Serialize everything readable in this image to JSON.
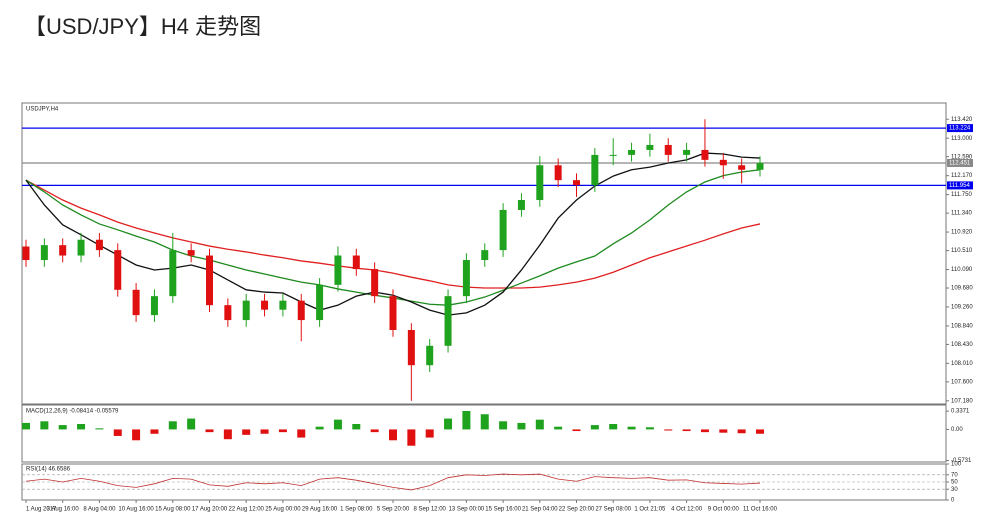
{
  "chart_data": [
    {
      "type": "candlestick",
      "title": "【USD/JPY】H4 走势图",
      "subtitle": "USDJPY,H4",
      "categories": [
        "1 Aug 2017",
        null,
        "3 Aug 16:00",
        null,
        "8 Aug 04:00",
        null,
        "10 Aug 16:00",
        null,
        "15 Aug 08:00",
        null,
        "17 Aug 20:00",
        null,
        "22 Aug 12:00",
        null,
        "25 Aug 00:00",
        null,
        "29 Aug 16:00",
        null,
        "1 Sep 08:00",
        null,
        "5 Sep 20:00",
        null,
        "8 Sep 12:00",
        null,
        "13 Sep 00:00",
        null,
        "15 Sep 16:00",
        null,
        "21 Sep 04:00",
        null,
        "22 Sep 20:00",
        null,
        "27 Sep 08:00",
        null,
        "1 Oct 21:05",
        null,
        "4 Oct 12:00",
        null,
        "9 Oct 00:00",
        null,
        "11 Oct 16:00"
      ],
      "open": [
        110.6,
        110.3,
        110.63,
        110.4,
        110.75,
        110.52,
        109.64,
        109.08,
        109.5,
        110.52,
        110.4,
        109.3,
        108.97,
        109.4,
        109.2,
        109.4,
        108.97,
        109.75,
        110.4,
        110.1,
        109.5,
        108.75,
        107.97,
        108.4,
        109.5,
        110.3,
        110.52,
        111.41,
        111.63,
        112.4,
        112.07,
        111.96,
        112.63,
        112.63,
        112.74,
        112.85,
        112.63,
        112.74,
        112.52,
        112.4,
        112.3
      ],
      "high": [
        110.75,
        110.78,
        110.78,
        110.9,
        110.9,
        110.67,
        109.79,
        109.65,
        110.9,
        110.67,
        110.55,
        109.45,
        109.55,
        109.55,
        109.55,
        109.55,
        109.9,
        110.6,
        110.55,
        110.25,
        109.65,
        108.9,
        108.55,
        109.65,
        110.45,
        110.67,
        111.56,
        111.78,
        112.6,
        112.55,
        112.22,
        112.78,
        113.0,
        112.9,
        113.1,
        113.0,
        112.9,
        113.42,
        112.67,
        112.55,
        112.6
      ],
      "low": [
        110.15,
        110.15,
        110.25,
        110.25,
        110.37,
        109.49,
        108.93,
        108.93,
        109.35,
        110.25,
        109.15,
        108.82,
        108.82,
        109.05,
        109.05,
        108.5,
        108.82,
        109.6,
        109.95,
        109.35,
        108.6,
        107.18,
        107.82,
        108.25,
        109.35,
        110.15,
        110.37,
        111.26,
        111.48,
        111.92,
        111.7,
        111.81,
        112.4,
        112.48,
        112.59,
        112.48,
        112.48,
        112.37,
        112.1,
        112.0,
        112.15
      ],
      "close": [
        110.3,
        110.63,
        110.4,
        110.75,
        110.52,
        109.64,
        109.08,
        109.5,
        110.52,
        110.4,
        109.3,
        108.97,
        109.4,
        109.2,
        109.4,
        108.97,
        109.75,
        110.4,
        110.1,
        109.5,
        108.75,
        107.97,
        108.4,
        109.5,
        110.3,
        110.52,
        111.41,
        111.63,
        112.4,
        112.07,
        111.96,
        112.63,
        112.63,
        112.74,
        112.85,
        112.63,
        112.74,
        112.52,
        112.4,
        112.3,
        112.45
      ],
      "up_color": "#1fa31f",
      "down_color": "#e01010",
      "series": [
        {
          "color": "#e02020",
          "values": [
            112.07,
            111.85,
            111.63,
            111.45,
            111.3,
            111.14,
            111.01,
            110.9,
            110.79,
            110.7,
            110.61,
            110.54,
            110.48,
            110.41,
            110.35,
            110.28,
            110.23,
            110.17,
            110.12,
            110.08,
            110.01,
            109.92,
            109.84,
            109.75,
            109.7,
            109.68,
            109.68,
            109.68,
            109.7,
            109.75,
            109.81,
            109.9,
            110.03,
            110.19,
            110.35,
            110.48,
            110.61,
            110.74,
            110.88,
            111.01,
            111.1
          ]
        },
        {
          "color": "#1e8a1e",
          "values": [
            112.07,
            111.81,
            111.52,
            111.3,
            111.1,
            110.97,
            110.83,
            110.7,
            110.52,
            110.39,
            110.3,
            110.19,
            110.08,
            109.99,
            109.9,
            109.81,
            109.75,
            109.66,
            109.59,
            109.52,
            109.46,
            109.39,
            109.32,
            109.3,
            109.37,
            109.48,
            109.63,
            109.79,
            109.95,
            110.12,
            110.26,
            110.39,
            110.66,
            110.9,
            111.19,
            111.52,
            111.81,
            112.03,
            112.17,
            112.25,
            112.3
          ]
        },
        {
          "color": "#111111",
          "values": [
            112.07,
            111.52,
            111.08,
            110.86,
            110.63,
            110.41,
            110.19,
            110.08,
            110.12,
            110.19,
            110.08,
            109.86,
            109.64,
            109.59,
            109.57,
            109.37,
            109.19,
            109.3,
            109.5,
            109.59,
            109.52,
            109.37,
            109.19,
            109.08,
            109.13,
            109.3,
            109.59,
            110.08,
            110.63,
            111.23,
            111.63,
            111.94,
            112.16,
            112.3,
            112.36,
            112.45,
            112.52,
            112.67,
            112.65,
            112.58,
            112.56
          ]
        }
      ],
      "hlines": [
        {
          "value": 113.224,
          "label": "113.224",
          "color": "#0000ee"
        },
        {
          "value": 111.954,
          "label": "111.954",
          "color": "#0000ee"
        },
        {
          "value": 112.451,
          "label": "112.451",
          "color": "#888888"
        }
      ],
      "ylim": [
        107.11,
        113.78
      ],
      "yticks": [
        {
          "value": 113.42,
          "label": "113.420"
        },
        {
          "value": 113,
          "label": "113.000"
        },
        {
          "value": 112.59,
          "label": "112.590"
        },
        {
          "value": 112.17,
          "label": "112.170"
        },
        {
          "value": 111.75,
          "label": "111.750"
        },
        {
          "value": 111.34,
          "label": "111.340"
        },
        {
          "value": 110.92,
          "label": "110.920"
        },
        {
          "value": 110.51,
          "label": "110.510"
        },
        {
          "value": 110.09,
          "label": "110.090"
        },
        {
          "value": 109.68,
          "label": "109.680"
        },
        {
          "value": 109.26,
          "label": "109.260"
        },
        {
          "value": 108.84,
          "label": "108.840"
        },
        {
          "value": 108.43,
          "label": "108.430"
        },
        {
          "value": 108.01,
          "label": "108.010"
        },
        {
          "value": 107.6,
          "label": "107.600"
        },
        {
          "value": 107.18,
          "label": "107.180"
        }
      ]
    },
    {
      "type": "bar",
      "title": "MACD(12,26,9) -0.08414 -0.05579",
      "values": [
        0.12,
        0.15,
        0.08,
        0.1,
        0.02,
        -0.12,
        -0.2,
        -0.08,
        0.15,
        0.2,
        -0.05,
        -0.18,
        -0.1,
        -0.08,
        -0.05,
        -0.15,
        0.05,
        0.18,
        0.1,
        -0.05,
        -0.2,
        -0.3,
        -0.15,
        0.2,
        0.34,
        0.28,
        0.15,
        0.12,
        0.18,
        0.05,
        -0.03,
        0.08,
        0.1,
        0.05,
        0.04,
        -0.02,
        -0.03,
        -0.05,
        -0.06,
        -0.07,
        -0.08
      ],
      "up_color": "#1fa31f",
      "down_color": "#e01010",
      "ylim": [
        -0.6,
        0.45
      ],
      "yticks": [
        0.3371,
        {
          "value": 0,
          "label": "0.00"
        },
        -0.5731
      ]
    },
    {
      "type": "line",
      "title": "RSI(14) 46.6586",
      "color": "#c03030",
      "values": [
        52,
        58,
        50,
        60,
        52,
        40,
        35,
        45,
        60,
        58,
        42,
        38,
        48,
        45,
        48,
        40,
        58,
        62,
        55,
        45,
        35,
        28,
        40,
        62,
        70,
        68,
        72,
        70,
        72,
        58,
        52,
        65,
        62,
        60,
        62,
        55,
        56,
        48,
        46,
        44,
        47
      ],
      "ylim": [
        0,
        100
      ],
      "yticks": [
        100,
        70,
        50,
        30,
        0
      ]
    }
  ]
}
